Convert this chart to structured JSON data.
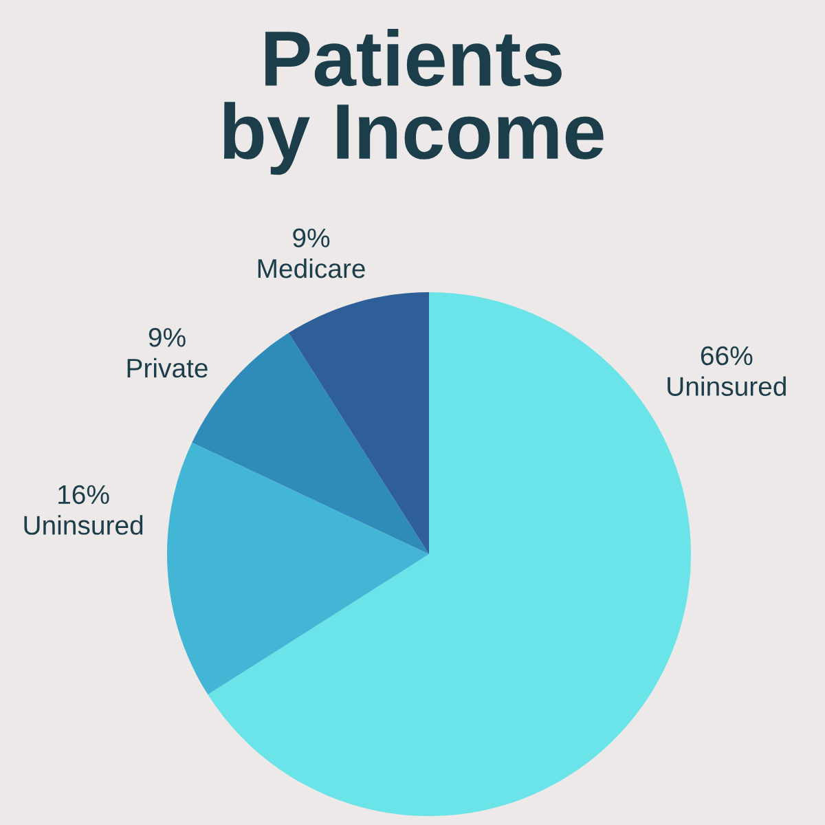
{
  "chart_data": {
    "type": "pie",
    "title": "Patients\nby Income",
    "categories": [
      "Uninsured",
      "Uninsured",
      "Private",
      "Medicare"
    ],
    "values": [
      66,
      16,
      9,
      9
    ],
    "value_labels": [
      "66%",
      "16%",
      "9%",
      "9%"
    ],
    "colors": [
      "#6ae4e8",
      "#43b6d6",
      "#2e8bba",
      "#2f5f98"
    ]
  }
}
